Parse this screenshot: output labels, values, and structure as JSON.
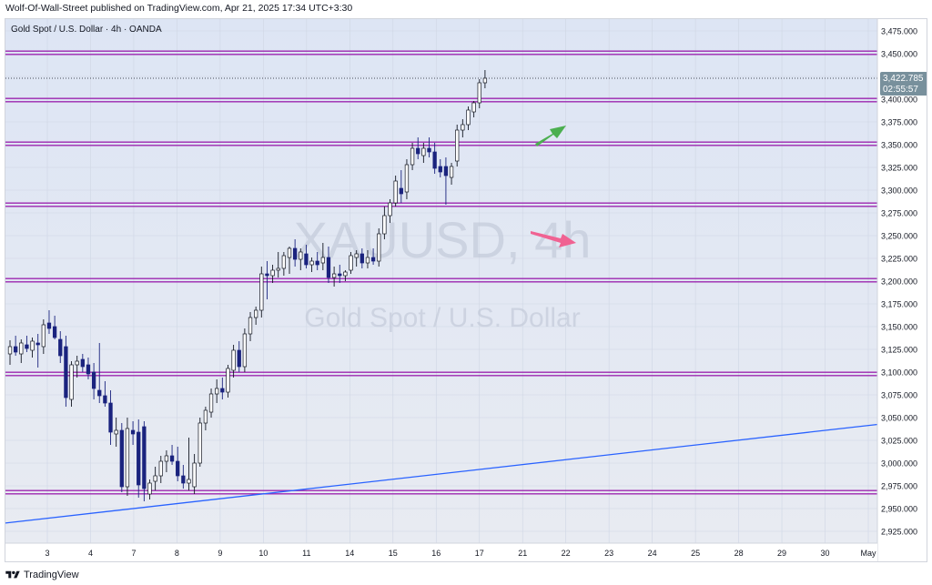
{
  "header": {
    "text": "Wolf-Of-Wall-Street published on TradingView.com, Apr 21, 2025 17:34 UTC+3:30"
  },
  "footer": {
    "brand": "TradingView",
    "logo_icon": "tradingview-logo-icon"
  },
  "colors": {
    "bg_top": "#dde5f4",
    "bg_bottom": "#e8ebf2",
    "candle_up_body": "#ffffff",
    "candle_up_border": "#131722",
    "candle_down": "#1a237e",
    "level_line": "#9c27b0",
    "trendline": "#2962ff",
    "green_arrow": "#4caf50",
    "pink_arrow": "#f06292",
    "watermark": "#bfc6d6",
    "price_tag": "#78909c",
    "axis_text": "#131722"
  },
  "chart_data": {
    "type": "candlestick",
    "symbol_label": "Gold Spot / U.S. Dollar · 4h · OANDA",
    "watermark_symbol": "XAUUSD, 4h",
    "watermark_name": "Gold Spot / U.S. Dollar",
    "ylim": [
      2912,
      3488
    ],
    "y_ticks": [
      2925,
      2950,
      2975,
      3000,
      3025,
      3050,
      3075,
      3100,
      3125,
      3150,
      3175,
      3200,
      3225,
      3250,
      3275,
      3300,
      3325,
      3350,
      3375,
      3400,
      3425,
      3450,
      3475
    ],
    "x_ticks": [
      "3",
      "4",
      "7",
      "8",
      "9",
      "10",
      "11",
      "14",
      "15",
      "16",
      "17",
      "21",
      "22",
      "23",
      "24",
      "25",
      "28",
      "29",
      "30",
      "May"
    ],
    "grid": true,
    "last_price": "3,422.785",
    "countdown": "02:55:57",
    "horizontal_levels": [
      2968,
      3098,
      3201,
      3284,
      3351,
      3399,
      3451
    ],
    "trendline": {
      "from": {
        "bar": -1,
        "price": 2934
      },
      "to": {
        "bar": 156,
        "price": 3043
      }
    },
    "green_arrow_note": "up-right arrow near current price",
    "pink_arrow_note": "down-right arrow",
    "candles": [
      {
        "o": 3120,
        "h": 3135,
        "l": 3108,
        "c": 3128
      },
      {
        "o": 3128,
        "h": 3140,
        "l": 3118,
        "c": 3122
      },
      {
        "o": 3120,
        "h": 3136,
        "l": 3110,
        "c": 3132
      },
      {
        "o": 3130,
        "h": 3140,
        "l": 3122,
        "c": 3126
      },
      {
        "o": 3124,
        "h": 3138,
        "l": 3116,
        "c": 3134
      },
      {
        "o": 3132,
        "h": 3142,
        "l": 3105,
        "c": 3130
      },
      {
        "o": 3128,
        "h": 3158,
        "l": 3120,
        "c": 3152
      },
      {
        "o": 3154,
        "h": 3168,
        "l": 3142,
        "c": 3148
      },
      {
        "o": 3150,
        "h": 3162,
        "l": 3136,
        "c": 3138
      },
      {
        "o": 3136,
        "h": 3145,
        "l": 3110,
        "c": 3118
      },
      {
        "o": 3128,
        "h": 3140,
        "l": 3062,
        "c": 3072
      },
      {
        "o": 3070,
        "h": 3112,
        "l": 3062,
        "c": 3108
      },
      {
        "o": 3108,
        "h": 3118,
        "l": 3094,
        "c": 3112
      },
      {
        "o": 3114,
        "h": 3120,
        "l": 3100,
        "c": 3106
      },
      {
        "o": 3108,
        "h": 3116,
        "l": 3092,
        "c": 3098
      },
      {
        "o": 3100,
        "h": 3110,
        "l": 3070,
        "c": 3082
      },
      {
        "o": 3080,
        "h": 3132,
        "l": 3066,
        "c": 3074
      },
      {
        "o": 3074,
        "h": 3090,
        "l": 3062,
        "c": 3066
      },
      {
        "o": 3066,
        "h": 3080,
        "l": 3020,
        "c": 3034
      },
      {
        "o": 3032,
        "h": 3050,
        "l": 3018,
        "c": 3036
      },
      {
        "o": 3036,
        "h": 3044,
        "l": 2968,
        "c": 2974
      },
      {
        "o": 2974,
        "h": 3050,
        "l": 2964,
        "c": 3038
      },
      {
        "o": 3036,
        "h": 3046,
        "l": 3020,
        "c": 3032
      },
      {
        "o": 3034,
        "h": 3048,
        "l": 2962,
        "c": 2976
      },
      {
        "o": 3040,
        "h": 3046,
        "l": 2958,
        "c": 2972
      },
      {
        "o": 2966,
        "h": 2982,
        "l": 2960,
        "c": 2978
      },
      {
        "o": 2980,
        "h": 2996,
        "l": 2970,
        "c": 2986
      },
      {
        "o": 2986,
        "h": 3008,
        "l": 2978,
        "c": 3002
      },
      {
        "o": 3002,
        "h": 3014,
        "l": 2990,
        "c": 3008
      },
      {
        "o": 3008,
        "h": 3020,
        "l": 2998,
        "c": 3002
      },
      {
        "o": 3002,
        "h": 3018,
        "l": 2980,
        "c": 2986
      },
      {
        "o": 2986,
        "h": 2998,
        "l": 2972,
        "c": 2978
      },
      {
        "o": 2978,
        "h": 3028,
        "l": 2970,
        "c": 2982
      },
      {
        "o": 2974,
        "h": 3010,
        "l": 2966,
        "c": 3000
      },
      {
        "o": 3000,
        "h": 3050,
        "l": 2996,
        "c": 3044
      },
      {
        "o": 3044,
        "h": 3062,
        "l": 3036,
        "c": 3058
      },
      {
        "o": 3056,
        "h": 3082,
        "l": 3050,
        "c": 3076
      },
      {
        "o": 3076,
        "h": 3092,
        "l": 3066,
        "c": 3082
      },
      {
        "o": 3082,
        "h": 3094,
        "l": 3070,
        "c": 3078
      },
      {
        "o": 3078,
        "h": 3108,
        "l": 3072,
        "c": 3104
      },
      {
        "o": 3102,
        "h": 3130,
        "l": 3094,
        "c": 3124
      },
      {
        "o": 3124,
        "h": 3134,
        "l": 3100,
        "c": 3106
      },
      {
        "o": 3106,
        "h": 3148,
        "l": 3100,
        "c": 3142
      },
      {
        "o": 3142,
        "h": 3166,
        "l": 3134,
        "c": 3160
      },
      {
        "o": 3160,
        "h": 3172,
        "l": 3152,
        "c": 3168
      },
      {
        "o": 3168,
        "h": 3216,
        "l": 3160,
        "c": 3208
      },
      {
        "o": 3208,
        "h": 3222,
        "l": 3180,
        "c": 3206
      },
      {
        "o": 3206,
        "h": 3218,
        "l": 3198,
        "c": 3212
      },
      {
        "o": 3212,
        "h": 3232,
        "l": 3204,
        "c": 3214
      },
      {
        "o": 3214,
        "h": 3232,
        "l": 3206,
        "c": 3228
      },
      {
        "o": 3226,
        "h": 3238,
        "l": 3208,
        "c": 3236
      },
      {
        "o": 3236,
        "h": 3246,
        "l": 3216,
        "c": 3224
      },
      {
        "o": 3224,
        "h": 3236,
        "l": 3212,
        "c": 3232
      },
      {
        "o": 3230,
        "h": 3240,
        "l": 3214,
        "c": 3218
      },
      {
        "o": 3218,
        "h": 3226,
        "l": 3210,
        "c": 3222
      },
      {
        "o": 3222,
        "h": 3232,
        "l": 3212,
        "c": 3218
      },
      {
        "o": 3220,
        "h": 3242,
        "l": 3212,
        "c": 3226
      },
      {
        "o": 3226,
        "h": 3238,
        "l": 3198,
        "c": 3204
      },
      {
        "o": 3204,
        "h": 3216,
        "l": 3194,
        "c": 3208
      },
      {
        "o": 3208,
        "h": 3218,
        "l": 3198,
        "c": 3206
      },
      {
        "o": 3206,
        "h": 3212,
        "l": 3200,
        "c": 3210
      },
      {
        "o": 3212,
        "h": 3232,
        "l": 3208,
        "c": 3228
      },
      {
        "o": 3226,
        "h": 3234,
        "l": 3216,
        "c": 3230
      },
      {
        "o": 3230,
        "h": 3236,
        "l": 3214,
        "c": 3220
      },
      {
        "o": 3220,
        "h": 3234,
        "l": 3214,
        "c": 3226
      },
      {
        "o": 3226,
        "h": 3236,
        "l": 3218,
        "c": 3222
      },
      {
        "o": 3222,
        "h": 3258,
        "l": 3216,
        "c": 3252
      },
      {
        "o": 3252,
        "h": 3282,
        "l": 3246,
        "c": 3272
      },
      {
        "o": 3272,
        "h": 3290,
        "l": 3264,
        "c": 3286
      },
      {
        "o": 3286,
        "h": 3316,
        "l": 3282,
        "c": 3310
      },
      {
        "o": 3302,
        "h": 3322,
        "l": 3286,
        "c": 3296
      },
      {
        "o": 3298,
        "h": 3334,
        "l": 3290,
        "c": 3328
      },
      {
        "o": 3328,
        "h": 3352,
        "l": 3322,
        "c": 3346
      },
      {
        "o": 3346,
        "h": 3358,
        "l": 3334,
        "c": 3340
      },
      {
        "o": 3338,
        "h": 3352,
        "l": 3330,
        "c": 3346
      },
      {
        "o": 3346,
        "h": 3358,
        "l": 3336,
        "c": 3342
      },
      {
        "o": 3342,
        "h": 3352,
        "l": 3318,
        "c": 3324
      },
      {
        "o": 3326,
        "h": 3334,
        "l": 3314,
        "c": 3320
      },
      {
        "o": 3326,
        "h": 3336,
        "l": 3284,
        "c": 3316
      },
      {
        "o": 3314,
        "h": 3330,
        "l": 3306,
        "c": 3326
      },
      {
        "o": 3332,
        "h": 3372,
        "l": 3326,
        "c": 3366
      },
      {
        "o": 3366,
        "h": 3378,
        "l": 3358,
        "c": 3372
      },
      {
        "o": 3372,
        "h": 3392,
        "l": 3366,
        "c": 3388
      },
      {
        "o": 3386,
        "h": 3398,
        "l": 3380,
        "c": 3396
      },
      {
        "o": 3396,
        "h": 3422,
        "l": 3390,
        "c": 3418
      },
      {
        "o": 3418,
        "h": 3432,
        "l": 3412,
        "c": 3423
      }
    ]
  }
}
